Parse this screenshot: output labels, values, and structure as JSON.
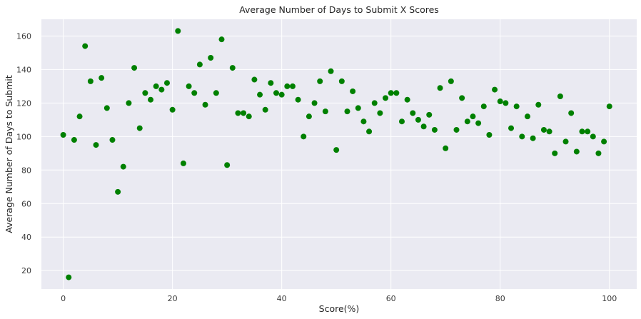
{
  "chart_data": {
    "type": "scatter",
    "title": "Average Number of Days to Submit X Scores",
    "xlabel": "Score(%)",
    "ylabel": "Average Number of Days to Submit",
    "xlim": [
      -4,
      105
    ],
    "ylim": [
      9,
      170
    ],
    "xticks": [
      0,
      20,
      40,
      60,
      80,
      100
    ],
    "yticks": [
      20,
      40,
      60,
      80,
      100,
      120,
      140,
      160
    ],
    "grid": true,
    "background_color": "#eaeaf2",
    "grid_color": "#ffffff",
    "marker_color": "#008000",
    "points": [
      [
        0,
        101
      ],
      [
        1,
        16
      ],
      [
        2,
        98
      ],
      [
        3,
        112
      ],
      [
        4,
        154
      ],
      [
        5,
        133
      ],
      [
        6,
        95
      ],
      [
        7,
        135
      ],
      [
        8,
        117
      ],
      [
        9,
        98
      ],
      [
        10,
        67
      ],
      [
        11,
        82
      ],
      [
        12,
        120
      ],
      [
        13,
        141
      ],
      [
        14,
        105
      ],
      [
        15,
        126
      ],
      [
        16,
        122
      ],
      [
        17,
        130
      ],
      [
        18,
        128
      ],
      [
        19,
        132
      ],
      [
        20,
        116
      ],
      [
        21,
        163
      ],
      [
        22,
        84
      ],
      [
        23,
        130
      ],
      [
        24,
        126
      ],
      [
        25,
        143
      ],
      [
        26,
        119
      ],
      [
        27,
        147
      ],
      [
        28,
        126
      ],
      [
        29,
        158
      ],
      [
        30,
        83
      ],
      [
        31,
        141
      ],
      [
        32,
        114
      ],
      [
        33,
        114
      ],
      [
        34,
        112
      ],
      [
        35,
        134
      ],
      [
        36,
        125
      ],
      [
        37,
        116
      ],
      [
        38,
        132
      ],
      [
        39,
        126
      ],
      [
        40,
        125
      ],
      [
        41,
        130
      ],
      [
        42,
        130
      ],
      [
        43,
        122
      ],
      [
        44,
        100
      ],
      [
        45,
        112
      ],
      [
        46,
        120
      ],
      [
        47,
        133
      ],
      [
        48,
        115
      ],
      [
        49,
        139
      ],
      [
        50,
        92
      ],
      [
        51,
        133
      ],
      [
        52,
        115
      ],
      [
        53,
        127
      ],
      [
        54,
        117
      ],
      [
        55,
        109
      ],
      [
        56,
        103
      ],
      [
        57,
        120
      ],
      [
        58,
        114
      ],
      [
        59,
        123
      ],
      [
        60,
        126
      ],
      [
        61,
        126
      ],
      [
        62,
        109
      ],
      [
        63,
        122
      ],
      [
        64,
        114
      ],
      [
        65,
        110
      ],
      [
        66,
        106
      ],
      [
        67,
        113
      ],
      [
        68,
        104
      ],
      [
        69,
        129
      ],
      [
        70,
        93
      ],
      [
        71,
        133
      ],
      [
        72,
        104
      ],
      [
        73,
        123
      ],
      [
        74,
        109
      ],
      [
        75,
        112
      ],
      [
        76,
        108
      ],
      [
        77,
        118
      ],
      [
        78,
        101
      ],
      [
        79,
        128
      ],
      [
        80,
        121
      ],
      [
        81,
        120
      ],
      [
        82,
        105
      ],
      [
        83,
        118
      ],
      [
        84,
        100
      ],
      [
        85,
        112
      ],
      [
        86,
        99
      ],
      [
        87,
        119
      ],
      [
        88,
        104
      ],
      [
        89,
        103
      ],
      [
        90,
        90
      ],
      [
        91,
        124
      ],
      [
        92,
        97
      ],
      [
        93,
        114
      ],
      [
        94,
        91
      ],
      [
        95,
        103
      ],
      [
        96,
        103
      ],
      [
        97,
        100
      ],
      [
        98,
        90
      ],
      [
        99,
        97
      ],
      [
        100,
        118
      ]
    ]
  }
}
